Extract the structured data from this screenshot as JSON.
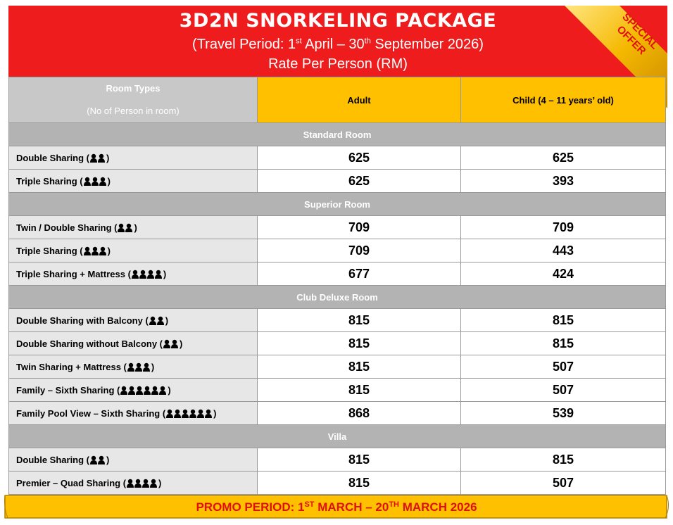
{
  "header": {
    "title": "3D2N SNORKELING PACKAGE",
    "subtitle": [
      "(Travel Period: 1",
      "st",
      " April – 30",
      "th",
      " September 2026)"
    ],
    "rate_note": "Rate Per Person (RM)",
    "special_offer": [
      "SPECIAL",
      "OFFER"
    ]
  },
  "table": {
    "headers": {
      "room_types": "Room Types",
      "room_types_note": "(No of Person in room)",
      "adult": "Adult",
      "child": "Child (4 – 11 years’ old)"
    },
    "sections": [
      {
        "name": "Standard Room",
        "rows": [
          {
            "label": "Double Sharing (",
            "label_end": ")",
            "adult": 625,
            "child": 625
          },
          {
            "label": "Triple Sharing (",
            "label_end": ")",
            "adult": 625,
            "child": 393
          }
        ]
      },
      {
        "name": "Superior Room",
        "rows": [
          {
            "label": "Twin / Double Sharing (",
            "label_end": ")",
            "adult": 709,
            "child": 709
          },
          {
            "label": "Triple Sharing (",
            "label_end": ")",
            "adult": 709,
            "child": 443
          },
          {
            "label": "Triple Sharing + Mattress (",
            "label_end": ")",
            "adult": 677,
            "child": 424
          }
        ]
      },
      {
        "name": "Club Deluxe Room",
        "rows": [
          {
            "label": "Double Sharing with Balcony (",
            "label_end": ")",
            "adult": 815,
            "child": 815
          },
          {
            "label": "Double Sharing without Balcony (",
            "label_end": ")",
            "adult": 815,
            "child": 815
          },
          {
            "label": "Twin Sharing + Mattress (",
            "label_end": ")",
            "adult": 815,
            "child": 507
          },
          {
            "label": "Family – Sixth Sharing (",
            "label_end": ")",
            "adult": 815,
            "child": 507
          },
          {
            "label": "Family Pool View – Sixth Sharing (",
            "label_end": ")",
            "adult": 868,
            "child": 539
          }
        ]
      },
      {
        "name": "Villa",
        "rows": [
          {
            "label": "Double Sharing (",
            "label_end": ")",
            "adult": 815,
            "child": 815
          },
          {
            "label": "Premier – Quad Sharing (",
            "label_end": ")",
            "adult": 815,
            "child": 507
          }
        ]
      }
    ]
  },
  "promo": [
    "PROMO PERIOD: 1",
    "ST",
    " MARCH – 20",
    "TH",
    " MARCH 2026"
  ]
}
